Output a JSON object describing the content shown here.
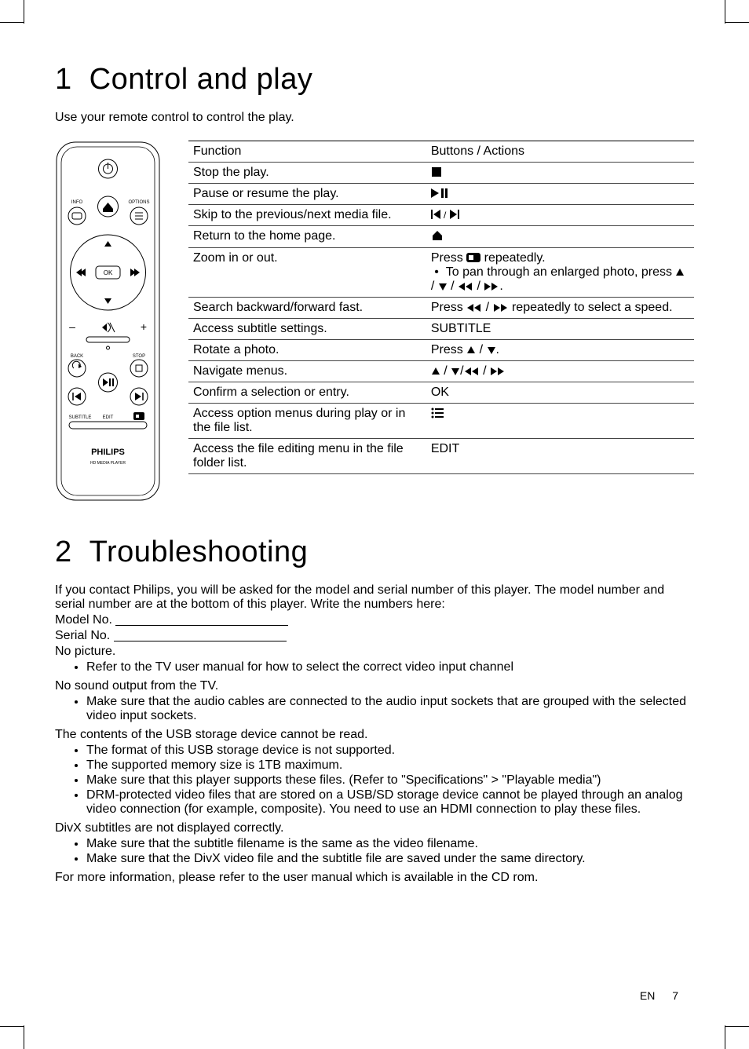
{
  "section1": {
    "number": "1",
    "title": "Control and play",
    "intro": "Use your remote control to control the play."
  },
  "table": {
    "headers": {
      "function": "Function",
      "buttons": "Buttons / Actions"
    },
    "rows": [
      {
        "function": "Stop the play.",
        "action_type": "icon",
        "icon": "stop"
      },
      {
        "function": "Pause or resume the play.",
        "action_type": "icon",
        "icon": "play-pause"
      },
      {
        "function": "Skip to the previous/next media file.",
        "action_type": "icon",
        "icon": "prev-next"
      },
      {
        "function": "Return to the home page.",
        "action_type": "icon",
        "icon": "home"
      },
      {
        "function": "Zoom in or out.",
        "action_type": "zoom",
        "line1_pre": "Press ",
        "line1_post": " repeatedly.",
        "bullet_pre": "To pan through an enlarged photo, press ",
        "nav_sep": " / ",
        "period": "."
      },
      {
        "function": "Search backward/forward fast.",
        "action_type": "search",
        "pre": "Press ",
        "mid": " / ",
        "post": " repeatedly to select a speed."
      },
      {
        "function": "Access subtitle settings.",
        "action_type": "text",
        "text": "SUBTITLE"
      },
      {
        "function": "Rotate a photo.",
        "action_type": "rotate",
        "pre": "Press ",
        "sep": " / ",
        "post": "."
      },
      {
        "function": "Navigate menus.",
        "action_type": "nav4",
        "sep": " / "
      },
      {
        "function": "Confirm a selection or entry.",
        "action_type": "text",
        "text": "OK"
      },
      {
        "function": "Access option menus during play or in the file list.",
        "action_type": "icon",
        "icon": "list"
      },
      {
        "function": "Access the file editing menu in the file folder list.",
        "action_type": "text",
        "text": "EDIT"
      }
    ]
  },
  "section2": {
    "number": "2",
    "title": "Troubleshooting",
    "intro1": "If you contact Philips, you will be asked for the model and serial number of this player. The model number and serial number are at the bottom of this player. Write the numbers here:",
    "model_label": "Model No.",
    "serial_label": "Serial No.",
    "groups": [
      {
        "heading": "No picture.",
        "items": [
          "Refer to the TV user manual for how to select the correct video input channel"
        ]
      },
      {
        "heading": "No sound output from the TV.",
        "items": [
          "Make sure that the audio cables are connected to the audio input sockets that are grouped with the selected video input sockets."
        ]
      },
      {
        "heading": "The contents of the USB storage device cannot be read.",
        "items": [
          "The format of this USB storage device is not supported.",
          "The supported memory size is 1TB maximum.",
          "Make sure that this player supports these files. (Refer to \"Specifications\" > \"Playable media\")",
          "DRM-protected video files that are stored on a USB/SD storage device cannot be played through an analog video connection (for example, composite). You need to use an HDMI connection to play these files."
        ],
        "special_bold_words": [
          "Specifications",
          "Playable media"
        ]
      },
      {
        "heading": "DivX subtitles are not displayed correctly.",
        "items": [
          "Make sure that the subtitle filename is the same as the video filename.",
          "Make sure that the DivX video file and the subtitle file are saved under the same directory."
        ]
      }
    ],
    "closing": "For more information, please refer to the user manual which is available in the CD rom."
  },
  "remote": {
    "labels": {
      "info": "INFO",
      "options": "OPTIONS",
      "ok": "OK",
      "back": "BACK",
      "stop": "STOP",
      "subtitle": "SUBTITLE",
      "edit": "EDIT",
      "brand": "PHILIPS",
      "sub": "HD MEDIA PLAYER",
      "minus": "–",
      "plus": "+"
    }
  },
  "footer": {
    "lang": "EN",
    "page": "7"
  },
  "colors": {
    "text": "#000000",
    "border": "#444444",
    "background": "#ffffff"
  },
  "typography": {
    "heading_fontsize": 38,
    "body_fontsize": 16,
    "heading_weight": 300,
    "body_weight": 300
  }
}
